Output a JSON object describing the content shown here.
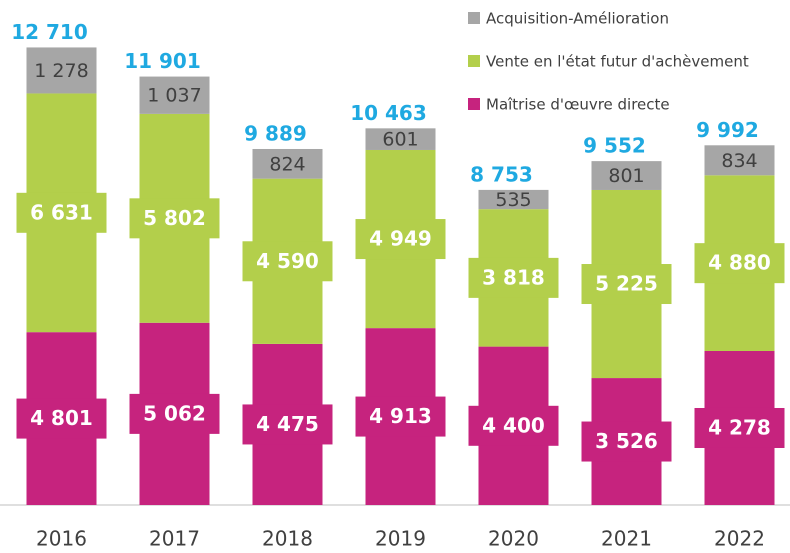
{
  "chart_data": {
    "type": "stacked-bar",
    "categories": [
      "2016",
      "2017",
      "2018",
      "2019",
      "2020",
      "2021",
      "2022"
    ],
    "series": [
      {
        "name": "Maîtrise d'œuvre directe",
        "color": "#c6237e",
        "values": [
          4801,
          5062,
          4475,
          4913,
          4400,
          3526,
          4278
        ],
        "value_labels": [
          "4 801",
          "5 062",
          "4 475",
          "4 913",
          "4 400",
          "3 526",
          "4 278"
        ]
      },
      {
        "name": "Vente en l'état futur d'achèvement",
        "color": "#b3cf4b",
        "values": [
          6631,
          5802,
          4590,
          4949,
          3818,
          5225,
          4880
        ],
        "value_labels": [
          "6 631",
          "5 802",
          "4 590",
          "4 949",
          "3 818",
          "5 225",
          "4 880"
        ]
      },
      {
        "name": "Acquisition-Amélioration",
        "color": "#a6a6a6",
        "values": [
          1278,
          1037,
          824,
          601,
          535,
          801,
          834
        ],
        "value_labels": [
          "1 278",
          "1 037",
          "824",
          "601",
          "535",
          "801",
          "834"
        ]
      }
    ],
    "totals": [
      12710,
      11901,
      9889,
      10463,
      8753,
      9552,
      9992
    ],
    "total_labels": [
      "12 710",
      "11 901",
      "9 889",
      "10 463",
      "8 753",
      "9 552",
      "9 992"
    ],
    "ylim": [
      0,
      14000
    ],
    "legend": "top-right"
  }
}
